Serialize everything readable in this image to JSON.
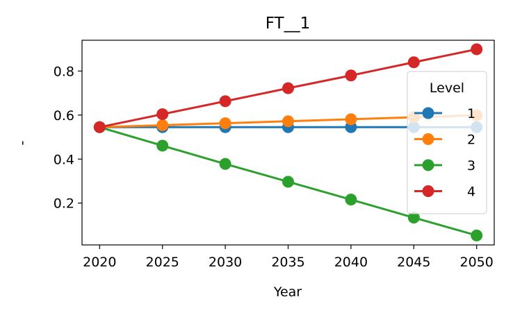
{
  "chart_data": {
    "type": "line",
    "title": "FT__1",
    "xlabel": "Year",
    "ylabel": "-",
    "x": [
      2020,
      2025,
      2030,
      2035,
      2040,
      2045,
      2050
    ],
    "xticks": [
      "2020",
      "2025",
      "2030",
      "2035",
      "2040",
      "2045",
      "2050"
    ],
    "yticks": [
      "0.2",
      "0.4",
      "0.6",
      "0.8"
    ],
    "ylim": [
      0.01,
      0.94
    ],
    "xlim": [
      2018.6,
      2051.4
    ],
    "grid": false,
    "legend": {
      "title": "Level",
      "placement": "right"
    },
    "series": [
      {
        "name": "1",
        "color": "#1f77b4",
        "values": [
          0.545,
          0.545,
          0.545,
          0.545,
          0.545,
          0.545,
          0.545
        ]
      },
      {
        "name": "2",
        "color": "#ff7f0e",
        "values": [
          0.545,
          0.554,
          0.563,
          0.572,
          0.581,
          0.59,
          0.599
        ]
      },
      {
        "name": "3",
        "color": "#2ca02c",
        "values": [
          0.545,
          0.461,
          0.378,
          0.297,
          0.216,
          0.134,
          0.053
        ]
      },
      {
        "name": "4",
        "color": "#d62728",
        "values": [
          0.545,
          0.604,
          0.663,
          0.722,
          0.78,
          0.84,
          0.899
        ]
      }
    ]
  }
}
